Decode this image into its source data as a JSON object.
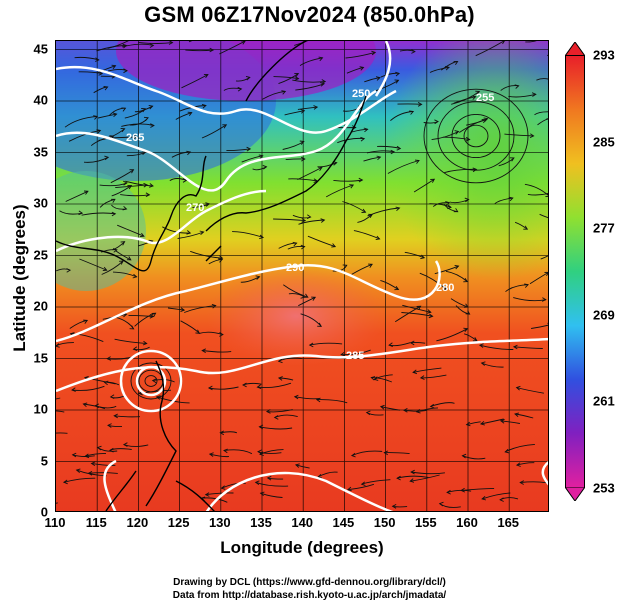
{
  "title": "GSM 06Z17Nov2024 (850.0hPa)",
  "axes": {
    "x_label": "Longitude (degrees)",
    "y_label": "Latitude  (degrees)",
    "x_ticks": [
      "110",
      "115",
      "120",
      "125",
      "130",
      "135",
      "140",
      "145",
      "150",
      "155",
      "160",
      "165"
    ],
    "y_ticks": [
      "0",
      "5",
      "10",
      "15",
      "20",
      "25",
      "30",
      "35",
      "40",
      "45"
    ]
  },
  "colorbar": {
    "ticks": [
      "293",
      "285",
      "277",
      "269",
      "261",
      "253"
    ],
    "colors": [
      "#e8202a",
      "#f07820",
      "#f0c020",
      "#90e030",
      "#30d080",
      "#30c0f0",
      "#3050e0",
      "#8020c0",
      "#e020a0"
    ]
  },
  "contour_labels": [
    "250",
    "255",
    "265",
    "270",
    "280",
    "285",
    "290"
  ],
  "credits": {
    "line1": "Drawing by DCL (https://www.gfd-dennou.org/library/dcl/)",
    "line2": "Data from http://database.rish.kyoto-u.ac.jp/arch/jmadata/"
  }
}
